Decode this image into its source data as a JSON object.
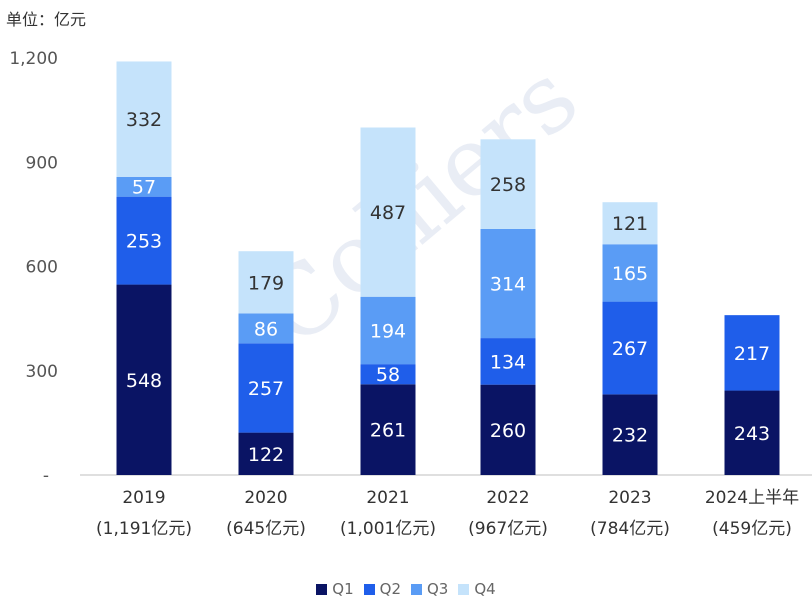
{
  "unit_label": "单位：亿元",
  "watermark": "Colliers",
  "chart_data": {
    "type": "bar",
    "stacked": true,
    "categories": [
      "2019",
      "2020",
      "2021",
      "2022",
      "2023",
      "2024上半年"
    ],
    "category_subtitles": [
      "(1,191亿元)",
      "(645亿元)",
      "(1,001亿元)",
      "(967亿元)",
      "(784亿元)",
      "(459亿元)"
    ],
    "series": [
      {
        "name": "Q1",
        "color": "#0a1464",
        "values": [
          548,
          122,
          261,
          260,
          232,
          243
        ]
      },
      {
        "name": "Q2",
        "color": "#1f5eea",
        "values": [
          253,
          257,
          58,
          134,
          267,
          217
        ]
      },
      {
        "name": "Q3",
        "color": "#5a9cf5",
        "values": [
          57,
          86,
          194,
          314,
          165,
          null
        ]
      },
      {
        "name": "Q4",
        "color": "#c5e3fb",
        "values": [
          332,
          179,
          487,
          258,
          121,
          null
        ]
      }
    ],
    "y_ticks": [
      0,
      300,
      600,
      900,
      1200
    ],
    "y_tick_labels": [
      "-",
      "300",
      "600",
      "900",
      "1,200"
    ],
    "ylim": [
      0,
      1200
    ],
    "legend_position": "bottom",
    "grid": false
  }
}
